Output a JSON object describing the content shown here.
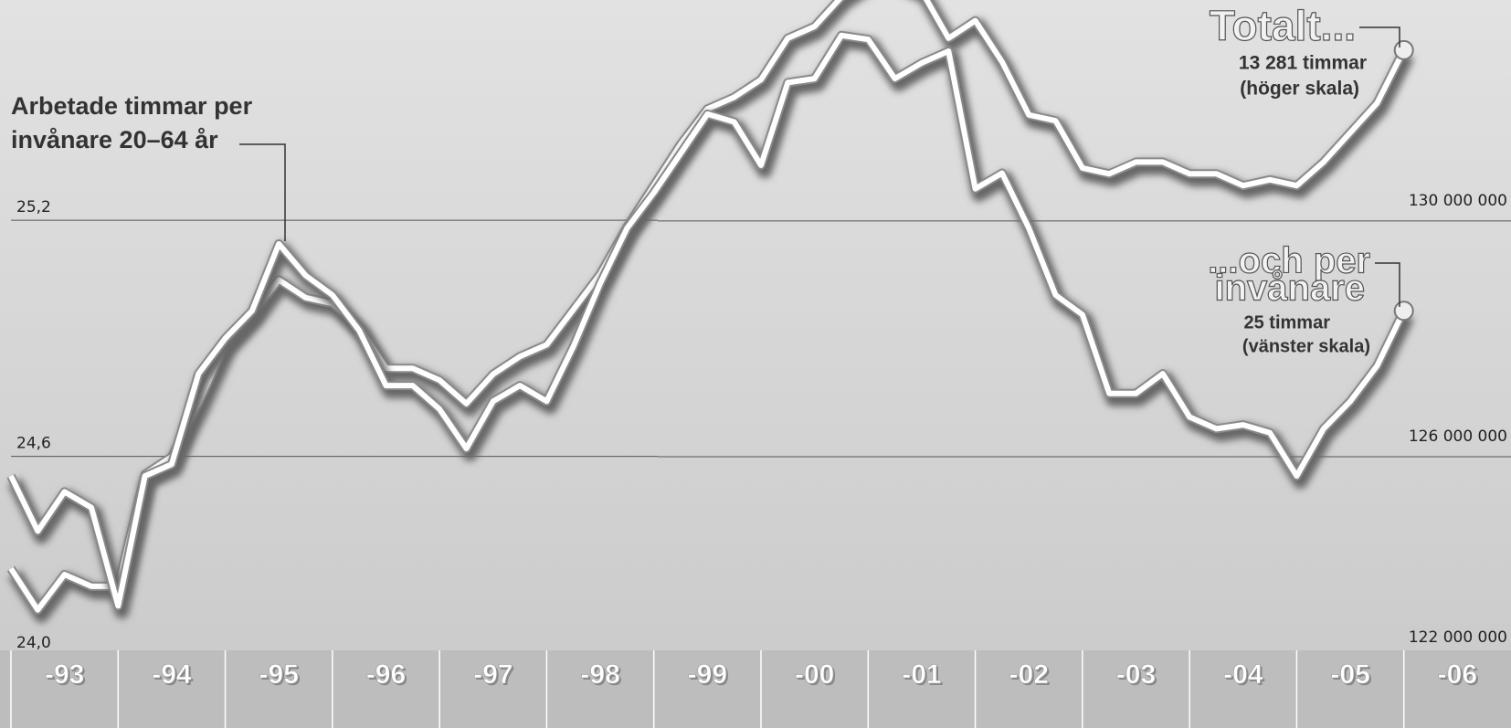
{
  "chart_data": {
    "type": "line",
    "annotations": [
      {
        "lines": [
          "Arbetade timmar per",
          "invånare 20–64 år"
        ]
      },
      {
        "lines": [
          "Totalt...",
          "13 281 timmar",
          "(höger skala)"
        ]
      },
      {
        "lines": [
          "...och per",
          "invånare",
          "25 timmar",
          "(vänster skala)"
        ]
      }
    ],
    "x": [
      1993.0,
      1993.25,
      1993.5,
      1993.75,
      1994.0,
      1994.25,
      1994.5,
      1994.75,
      1995.0,
      1995.25,
      1995.5,
      1995.75,
      1996.0,
      1996.25,
      1996.5,
      1996.75,
      1997.0,
      1997.25,
      1997.5,
      1997.75,
      1998.0,
      1998.25,
      1998.5,
      1998.75,
      1999.0,
      1999.25,
      1999.5,
      1999.75,
      2000.0,
      2000.25,
      2000.5,
      2000.75,
      2001.0,
      2001.25,
      2001.5,
      2001.75,
      2002.0,
      2002.25,
      2002.5,
      2002.75,
      2003.0,
      2003.25,
      2003.5,
      2003.75,
      2004.0,
      2004.25,
      2004.5,
      2004.75,
      2005.0,
      2005.25,
      2005.5,
      2005.75,
      2006.0
    ],
    "xlim": [
      1993,
      2007
    ],
    "xticks": [
      {
        "value": 1993,
        "label": "-93"
      },
      {
        "value": 1994,
        "label": "-94"
      },
      {
        "value": 1995,
        "label": "-95"
      },
      {
        "value": 1996,
        "label": "-96"
      },
      {
        "value": 1997,
        "label": "-97"
      },
      {
        "value": 1998,
        "label": "-98"
      },
      {
        "value": 1999,
        "label": "-99"
      },
      {
        "value": 2000,
        "label": "-00"
      },
      {
        "value": 2001,
        "label": "-01"
      },
      {
        "value": 2002,
        "label": "-02"
      },
      {
        "value": 2003,
        "label": "-03"
      },
      {
        "value": 2004,
        "label": "-04"
      },
      {
        "value": 2005,
        "label": "-05"
      },
      {
        "value": 2006,
        "label": "-06"
      }
    ],
    "ylim": [
      24.0,
      25.76
    ],
    "yticks": [
      {
        "value": 24.0,
        "label": "24,0"
      },
      {
        "value": 24.6,
        "label": "24,6"
      },
      {
        "value": 25.2,
        "label": "25,2"
      }
    ],
    "y2lim": [
      122000000,
      133750000
    ],
    "y2ticks": [
      {
        "value": 122000000,
        "label": "122 000 000"
      },
      {
        "value": 126000000,
        "label": "126 000 000"
      },
      {
        "value": 130000000,
        "label": "130 000 000"
      }
    ],
    "grid": true,
    "series": [
      {
        "color": "#ffffff",
        "axis": "y2",
        "values": [
          124100000,
          123400000,
          124000000,
          123800000,
          123800000,
          125700000,
          126000000,
          126900000,
          127900000,
          128400000,
          129000000,
          128700000,
          128600000,
          128200000,
          127500000,
          127500000,
          127300000,
          126900000,
          127400000,
          127700000,
          127900000,
          128500000,
          129100000,
          129900000,
          130600000,
          131300000,
          131900000,
          132100000,
          132400000,
          133100000,
          133300000,
          133800000,
          134100000,
          134100000,
          133900000,
          133100000,
          133400000,
          132700000,
          131800000,
          131700000,
          130900000,
          130800000,
          131000000,
          131000000,
          130800000,
          130800000,
          130600000,
          130700000,
          130600000,
          131000000,
          131500000,
          132000000,
          132900000
        ]
      },
      {
        "color": "#ffffff",
        "values": [
          24.55,
          24.41,
          24.51,
          24.47,
          24.22,
          24.55,
          24.58,
          24.81,
          24.9,
          24.97,
          25.14,
          25.06,
          25.01,
          24.92,
          24.78,
          24.78,
          24.72,
          24.62,
          24.74,
          24.78,
          24.74,
          24.88,
          25.04,
          25.18,
          25.27,
          25.37,
          25.47,
          25.45,
          25.34,
          25.55,
          25.56,
          25.67,
          25.66,
          25.56,
          25.6,
          25.63,
          25.28,
          25.32,
          25.18,
          25.01,
          24.96,
          24.76,
          24.76,
          24.81,
          24.7,
          24.67,
          24.68,
          24.66,
          24.55,
          24.67,
          24.74,
          24.83,
          24.97
        ]
      }
    ]
  }
}
